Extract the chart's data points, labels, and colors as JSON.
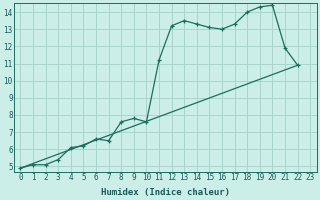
{
  "xlabel": "Humidex (Indice chaleur)",
  "bg_color": "#cceee8",
  "grid_color": "#aad4cc",
  "line_color": "#1a6e5e",
  "xlim": [
    -0.5,
    23.5
  ],
  "ylim": [
    4.7,
    14.5
  ],
  "xticks": [
    0,
    1,
    2,
    3,
    4,
    5,
    6,
    7,
    8,
    9,
    10,
    11,
    12,
    13,
    14,
    15,
    16,
    17,
    18,
    19,
    20,
    21,
    22,
    23
  ],
  "yticks": [
    5,
    6,
    7,
    8,
    9,
    10,
    11,
    12,
    13,
    14
  ],
  "curve_x": [
    0,
    1,
    2,
    3,
    4,
    5,
    6,
    7,
    8,
    9,
    10,
    11,
    12,
    13,
    14,
    15,
    16,
    17,
    18,
    19,
    20,
    21,
    22
  ],
  "curve_y": [
    4.9,
    5.1,
    5.1,
    5.4,
    6.1,
    6.2,
    6.6,
    6.5,
    7.6,
    7.8,
    7.6,
    11.2,
    13.2,
    13.5,
    13.3,
    13.1,
    13.0,
    13.3,
    14.0,
    14.3,
    14.4,
    11.9,
    10.9
  ],
  "line_x": [
    0,
    22
  ],
  "line_y": [
    4.9,
    10.9
  ]
}
